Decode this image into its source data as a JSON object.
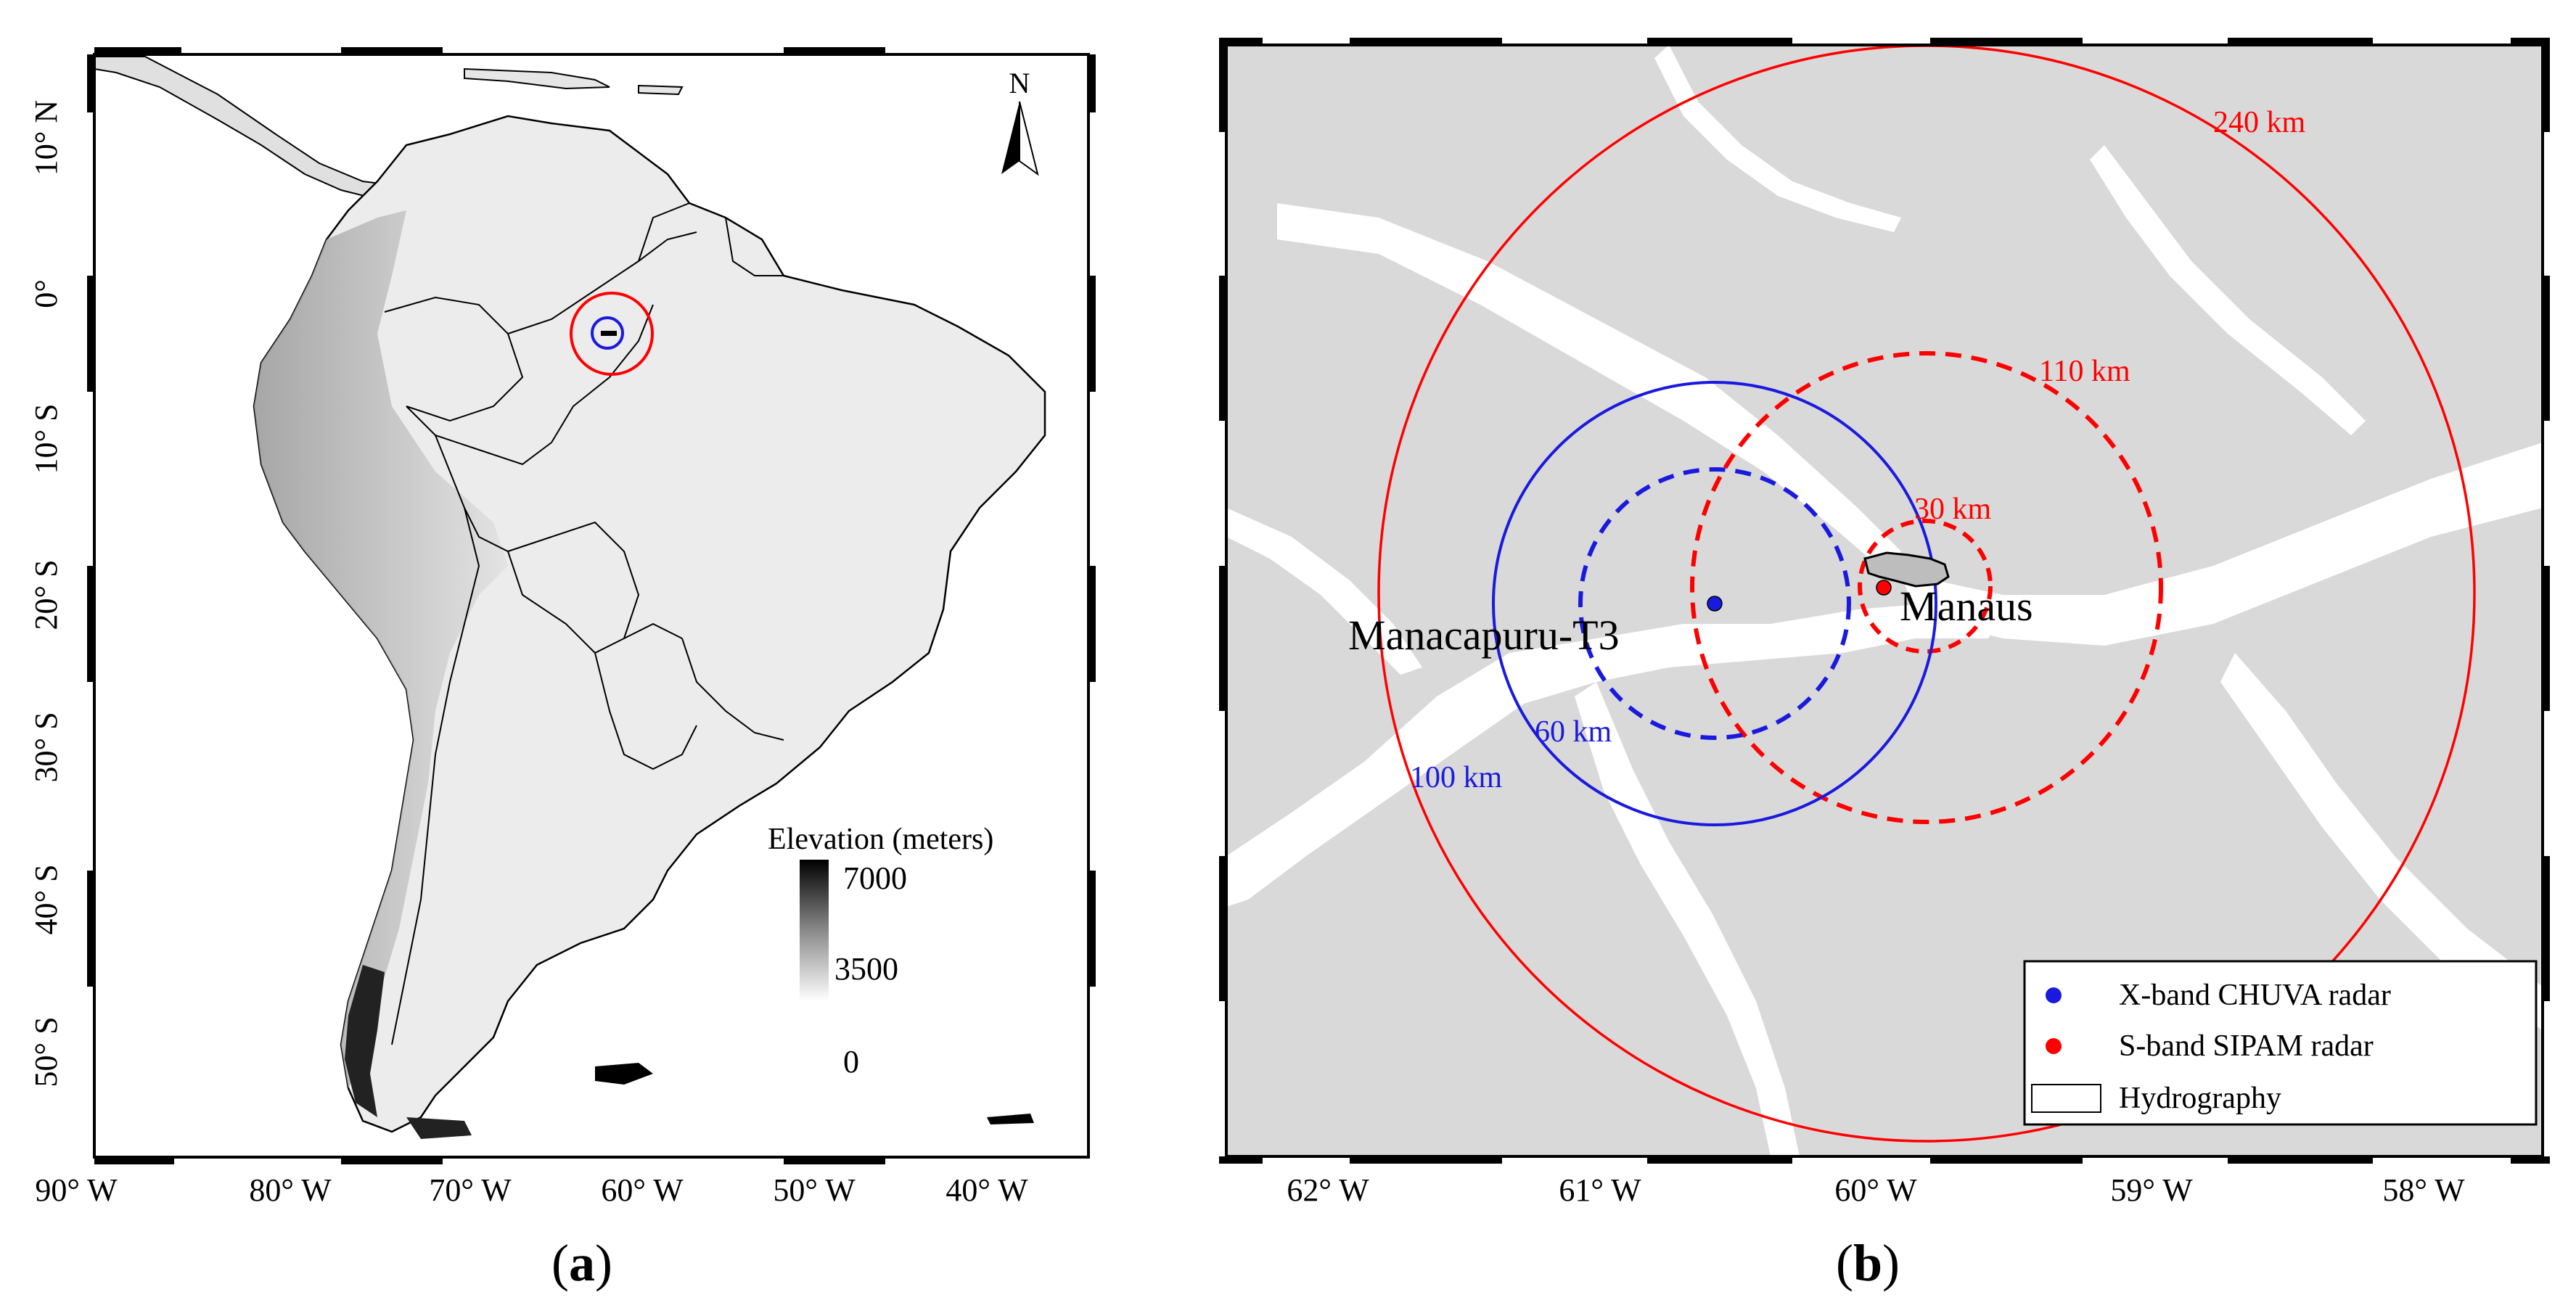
{
  "panel_a": {
    "caption": "(a)",
    "caption_letter": "a",
    "north": "N",
    "lat_labels": [
      "10° N",
      "0°",
      "10° S",
      "20° S",
      "30° S",
      "40° S",
      "50° S"
    ],
    "lon_labels": [
      "90° W",
      "80° W",
      "70° W",
      "60° W",
      "50° W",
      "40° W"
    ],
    "legend": {
      "title": "Elevation (meters)",
      "max": "7000",
      "mid": "3500",
      "min": "0"
    }
  },
  "panel_b": {
    "caption": "(b)",
    "caption_letter": "b",
    "lon_labels": [
      "62° W",
      "61° W",
      "60° W",
      "59° W",
      "58° W"
    ],
    "sites": {
      "manacapuru": "Manacapuru-T3",
      "manaus": "Manaus"
    },
    "ranges": {
      "r240": "240 km",
      "r110": "110 km",
      "r30": "30 km",
      "r60": "60 km",
      "r100": "100 km"
    },
    "legend": {
      "xband": "X-band CHUVA radar",
      "sband": "S-band SIPAM radar",
      "hydro": "Hydrography"
    }
  },
  "colors": {
    "red": "#ff0000",
    "blue": "#1a1adf",
    "land": "#d9d9d9",
    "frame": "#000000"
  }
}
